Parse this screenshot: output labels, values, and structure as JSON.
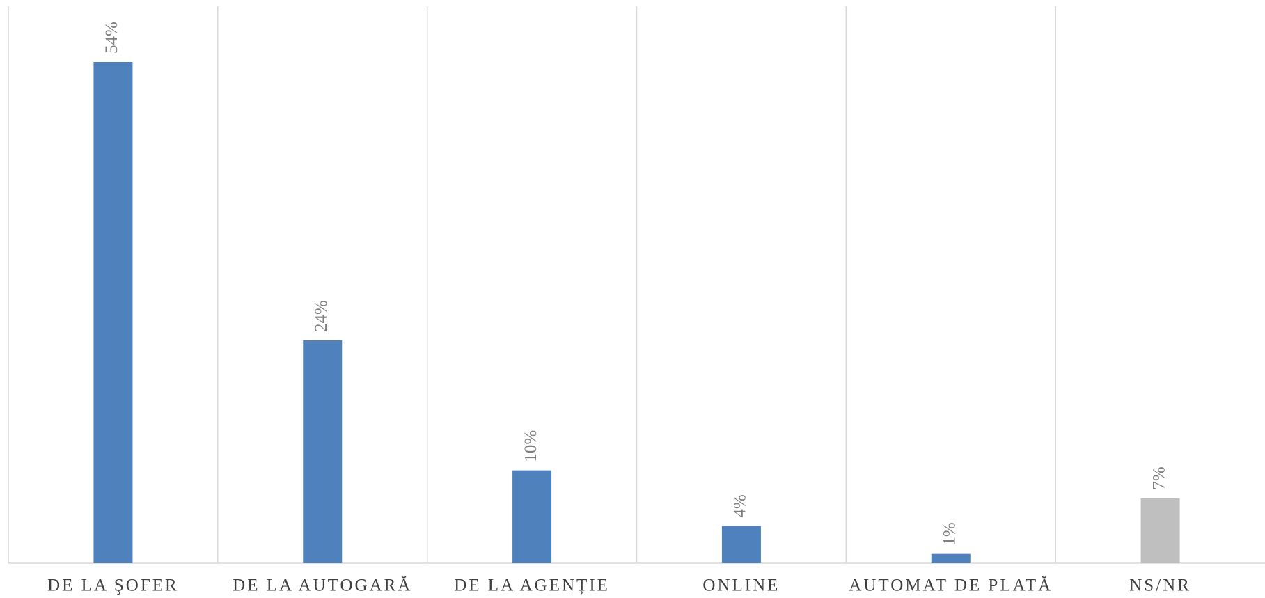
{
  "chart_data": {
    "type": "bar",
    "categories": [
      "DE LA ŞOFER",
      "DE LA AUTOGARĂ",
      "DE LA AGENȚIE",
      "ONLINE",
      "AUTOMAT DE PLATĂ",
      "NS/NR"
    ],
    "values": [
      54,
      24,
      10,
      4,
      1,
      7
    ],
    "value_labels": [
      "54%",
      "24%",
      "10%",
      "4%",
      "1%",
      "7%"
    ],
    "colors": [
      "#4f81bd",
      "#4f81bd",
      "#4f81bd",
      "#4f81bd",
      "#4f81bd",
      "#bfbfbf"
    ],
    "ylim": [
      0,
      60
    ]
  }
}
